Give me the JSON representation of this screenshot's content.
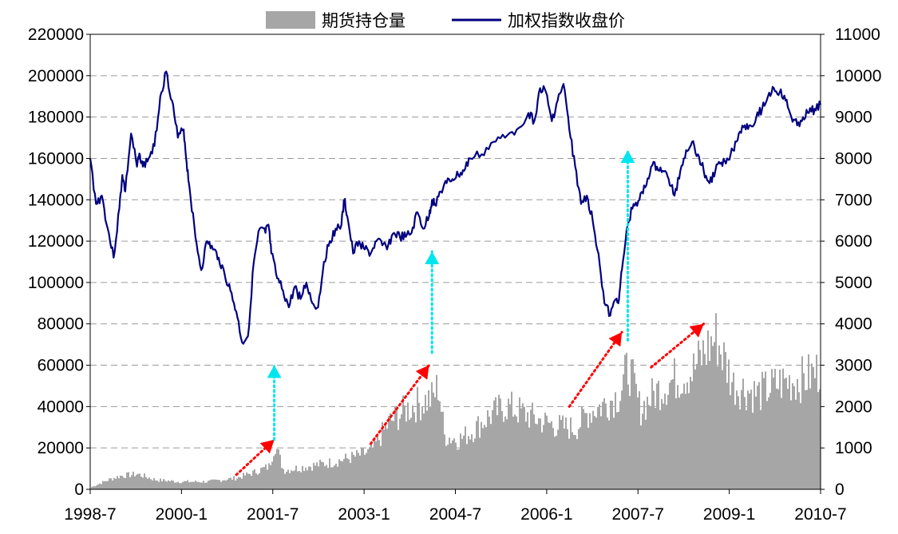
{
  "chart_data": {
    "type": "bar+line",
    "legend": {
      "placement": "top-center",
      "entries": [
        {
          "name": "期货持仓量",
          "kind": "bar",
          "color": "#a6a6a6"
        },
        {
          "name": "加权指数收盘价",
          "kind": "line",
          "color": "#000080"
        }
      ]
    },
    "x_ticks": [
      "1998-7",
      "2000-1",
      "2001-7",
      "2003-1",
      "2004-7",
      "2006-1",
      "2007-7",
      "2009-1",
      "2010-7"
    ],
    "x_range": [
      1998.5,
      2011.0
    ],
    "y_left": {
      "min": 0,
      "max": 220000,
      "ticks": [
        "0",
        "20000",
        "40000",
        "60000",
        "80000",
        "100000",
        "120000",
        "140000",
        "160000",
        "180000",
        "200000",
        "220000"
      ]
    },
    "y_right": {
      "min": 0,
      "max": 11000,
      "ticks": [
        "0",
        "1000",
        "2000",
        "3000",
        "4000",
        "5000",
        "6000",
        "7000",
        "8000",
        "9000",
        "10000",
        "11000"
      ]
    },
    "grid": "horizontal-dashed",
    "series": [
      {
        "name": "期货持仓量",
        "axis": "left",
        "x": [
          1998.5,
          1998.8,
          1999.0,
          1999.3,
          1999.6,
          2000.0,
          2000.5,
          2001.0,
          2001.3,
          2001.55,
          2001.65,
          2001.8,
          2002.2,
          2002.6,
          2003.0,
          2003.3,
          2003.6,
          2003.9,
          2004.1,
          2004.35,
          2004.45,
          2004.55,
          2004.8,
          2005.0,
          2005.3,
          2005.6,
          2005.9,
          2006.2,
          2006.5,
          2006.8,
          2007.0,
          2007.3,
          2007.55,
          2007.7,
          2007.9,
          2008.2,
          2008.5,
          2008.8,
          2009.0,
          2009.2,
          2009.5,
          2009.9,
          2010.3,
          2010.7,
          2011.0
        ],
        "values": [
          1000,
          5000,
          7000,
          8000,
          5000,
          4000,
          4000,
          6000,
          9000,
          12000,
          24000,
          10000,
          12000,
          14000,
          17000,
          20000,
          35000,
          42000,
          45000,
          48000,
          55000,
          28000,
          26000,
          30000,
          38000,
          44000,
          40000,
          36000,
          33000,
          32000,
          40000,
          45000,
          50000,
          65000,
          42000,
          52000,
          58000,
          62000,
          72000,
          80000,
          55000,
          50000,
          56000,
          58000,
          63000
        ]
      },
      {
        "name": "加权指数收盘价",
        "axis": "right",
        "x": [
          1998.5,
          1998.6,
          1998.7,
          1998.8,
          1998.9,
          1999.0,
          1999.05,
          1999.1,
          1999.2,
          1999.3,
          1999.35,
          1999.4,
          1999.5,
          1999.6,
          1999.7,
          1999.8,
          1999.9,
          2000.0,
          2000.1,
          2000.15,
          2000.2,
          2000.3,
          2000.4,
          2000.5,
          2000.6,
          2000.7,
          2000.8,
          2000.9,
          2001.0,
          2001.1,
          2001.2,
          2001.3,
          2001.4,
          2001.5,
          2001.55,
          2001.6,
          2001.7,
          2001.8,
          2001.9,
          2002.0,
          2002.1,
          2002.2,
          2002.3,
          2002.4,
          2002.5,
          2002.6,
          2002.7,
          2002.8,
          2002.85,
          2002.9,
          2003.0,
          2003.1,
          2003.2,
          2003.3,
          2003.4,
          2003.5,
          2003.6,
          2003.7,
          2003.8,
          2003.9,
          2004.0,
          2004.1,
          2004.2,
          2004.3,
          2004.35,
          2004.4,
          2004.5,
          2004.6,
          2004.7,
          2004.8,
          2004.9,
          2005.0,
          2005.2,
          2005.4,
          2005.6,
          2005.8,
          2006.0,
          2006.1,
          2006.2,
          2006.3,
          2006.4,
          2006.5,
          2006.6,
          2006.7,
          2006.8,
          2006.9,
          2007.0,
          2007.1,
          2007.2,
          2007.3,
          2007.4,
          2007.5,
          2007.55,
          2007.6,
          2007.7,
          2007.8,
          2007.9,
          2008.0,
          2008.1,
          2008.2,
          2008.3,
          2008.4,
          2008.5,
          2008.6,
          2008.7,
          2008.8,
          2008.9,
          2009.0,
          2009.1,
          2009.2,
          2009.3,
          2009.4,
          2009.5,
          2009.6,
          2009.7,
          2009.8,
          2009.9,
          2010.0,
          2010.1,
          2010.2,
          2010.3,
          2010.4,
          2010.5,
          2010.6,
          2010.7,
          2010.8,
          2010.9,
          2011.0
        ],
        "values": [
          8000,
          6900,
          7100,
          6300,
          5600,
          6800,
          7600,
          7200,
          8600,
          7800,
          8100,
          7800,
          8000,
          8300,
          9500,
          10100,
          9400,
          8500,
          8700,
          7900,
          7300,
          6100,
          5300,
          6000,
          5800,
          5600,
          5200,
          4800,
          4300,
          3550,
          3700,
          5500,
          6300,
          6200,
          6400,
          5700,
          5100,
          4800,
          4400,
          4900,
          4600,
          5000,
          4500,
          4400,
          5500,
          6000,
          6300,
          6400,
          7000,
          6600,
          5700,
          6000,
          5800,
          5700,
          6000,
          5900,
          5900,
          6200,
          6100,
          6100,
          6200,
          6700,
          6300,
          6600,
          7000,
          6900,
          7200,
          7400,
          7500,
          7600,
          7700,
          8000,
          8100,
          8400,
          8500,
          8700,
          9100,
          8900,
          9700,
          9600,
          8900,
          9400,
          9800,
          8700,
          7800,
          6900,
          7100,
          6500,
          5700,
          4500,
          4200,
          4600,
          4600,
          5300,
          6400,
          6900,
          7000,
          7300,
          7800,
          7800,
          7700,
          7500,
          7100,
          7700,
          8200,
          8400,
          8100,
          7700,
          7400,
          7700,
          7900,
          8000,
          8200,
          8600,
          8800,
          8800,
          9000,
          9200,
          9500,
          9700,
          9600,
          9400,
          9000,
          8800,
          9000,
          9100,
          9200,
          9300
        ]
      }
    ],
    "annotations": [
      {
        "kind": "red-dotted-arrow",
        "from": [
          2001.0,
          7000
        ],
        "to": [
          2001.65,
          24000
        ],
        "axis": "left"
      },
      {
        "kind": "red-dotted-arrow",
        "from": [
          2003.3,
          22000
        ],
        "to": [
          2004.3,
          60000
        ],
        "axis": "left"
      },
      {
        "kind": "red-dotted-arrow",
        "from": [
          2006.7,
          40000
        ],
        "to": [
          2007.6,
          76000
        ],
        "axis": "left"
      },
      {
        "kind": "red-dotted-arrow",
        "from": [
          2008.1,
          59000
        ],
        "to": [
          2009.0,
          80000
        ],
        "axis": "left"
      },
      {
        "kind": "cyan-dotted-arrow",
        "from": [
          2001.65,
          24000
        ],
        "to": [
          2001.65,
          60000
        ],
        "axis": "left"
      },
      {
        "kind": "cyan-dotted-arrow",
        "from": [
          2004.35,
          66000
        ],
        "to": [
          2004.35,
          115000
        ],
        "axis": "left"
      },
      {
        "kind": "cyan-dotted-arrow",
        "from": [
          2007.7,
          72000
        ],
        "to": [
          2007.7,
          164000
        ],
        "axis": "left"
      }
    ]
  }
}
